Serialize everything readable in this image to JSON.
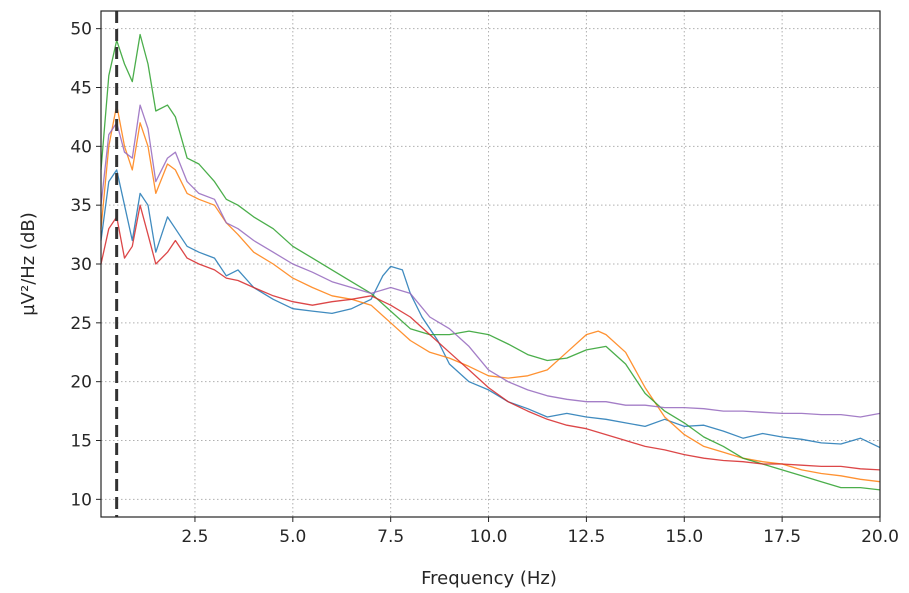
{
  "chart_data": {
    "type": "line",
    "title": "",
    "xlabel": "Frequency (Hz)",
    "ylabel": "µV²/Hz (dB)",
    "xlim": [
      0.1,
      20.0
    ],
    "ylim": [
      8.5,
      51.5
    ],
    "xticks": [
      2.5,
      5.0,
      7.5,
      10.0,
      12.5,
      15.0,
      17.5,
      20.0
    ],
    "xtick_labels": [
      "2.5",
      "5.0",
      "7.5",
      "10.0",
      "12.5",
      "15.0",
      "17.5",
      "20.0"
    ],
    "yticks": [
      10,
      15,
      20,
      25,
      30,
      35,
      40,
      45,
      50
    ],
    "ytick_labels": [
      "10",
      "15",
      "20",
      "25",
      "30",
      "35",
      "40",
      "45",
      "50"
    ],
    "grid": true,
    "legend": "none",
    "vline": {
      "x": 0.5,
      "style": "dashed",
      "color": "#333333"
    },
    "series": [
      {
        "color": "#1f77b4",
        "x": [
          0.1,
          0.3,
          0.5,
          0.7,
          0.9,
          1.1,
          1.3,
          1.5,
          1.8,
          2.0,
          2.3,
          2.6,
          3.0,
          3.3,
          3.6,
          4.0,
          4.5,
          5.0,
          5.5,
          6.0,
          6.5,
          7.0,
          7.3,
          7.5,
          7.8,
          8.0,
          8.3,
          8.7,
          9.0,
          9.5,
          10.0,
          10.5,
          11.0,
          11.5,
          12.0,
          12.5,
          13.0,
          13.5,
          14.0,
          14.5,
          15.0,
          15.5,
          16.0,
          16.5,
          17.0,
          17.5,
          18.0,
          18.5,
          19.0,
          19.5,
          20.0
        ],
        "y": [
          32,
          37,
          38,
          35,
          32,
          36,
          35,
          31,
          34,
          33,
          31.5,
          31,
          30.5,
          29,
          29.5,
          28,
          27,
          26.2,
          26,
          25.8,
          26.2,
          27,
          29,
          29.8,
          29.5,
          27.5,
          25.5,
          23.5,
          21.5,
          20,
          19.3,
          18.3,
          17.7,
          17,
          17.3,
          17,
          16.8,
          16.5,
          16.2,
          16.8,
          16.2,
          16.3,
          15.8,
          15.2,
          15.6,
          15.3,
          15.1,
          14.8,
          14.7,
          15.2,
          14.4
        ]
      },
      {
        "color": "#ff7f0e",
        "x": [
          0.1,
          0.3,
          0.5,
          0.7,
          0.9,
          1.1,
          1.3,
          1.5,
          1.8,
          2.0,
          2.3,
          2.6,
          3.0,
          3.3,
          3.6,
          4.0,
          4.5,
          5.0,
          5.5,
          6.0,
          6.5,
          7.0,
          7.5,
          8.0,
          8.5,
          9.0,
          9.5,
          10.0,
          10.5,
          11.0,
          11.5,
          12.0,
          12.5,
          12.8,
          13.0,
          13.5,
          14.0,
          14.5,
          15.0,
          15.5,
          16.0,
          16.5,
          17.0,
          17.5,
          18.0,
          18.5,
          19.0,
          19.5,
          20.0
        ],
        "y": [
          33,
          40,
          43.5,
          40,
          38,
          42,
          40,
          36,
          38.5,
          38,
          36,
          35.5,
          35,
          33.5,
          32.5,
          31,
          30,
          28.8,
          28,
          27.3,
          27,
          26.5,
          25,
          23.5,
          22.5,
          22,
          21.3,
          20.5,
          20.3,
          20.5,
          21,
          22.5,
          24,
          24.3,
          24,
          22.5,
          19.5,
          17,
          15.5,
          14.5,
          14,
          13.5,
          13.2,
          13,
          12.5,
          12.2,
          12,
          11.7,
          11.5
        ]
      },
      {
        "color": "#2ca02c",
        "x": [
          0.1,
          0.3,
          0.5,
          0.7,
          0.9,
          1.1,
          1.3,
          1.5,
          1.8,
          2.0,
          2.3,
          2.6,
          3.0,
          3.3,
          3.6,
          4.0,
          4.5,
          5.0,
          5.5,
          6.0,
          6.5,
          7.0,
          7.5,
          8.0,
          8.5,
          9.0,
          9.5,
          10.0,
          10.5,
          11.0,
          11.5,
          12.0,
          12.5,
          13.0,
          13.5,
          14.0,
          14.5,
          15.0,
          15.5,
          16.0,
          16.5,
          17.0,
          17.5,
          18.0,
          18.5,
          19.0,
          19.5,
          20.0
        ],
        "y": [
          38,
          46,
          49,
          47,
          45.5,
          49.5,
          47,
          43,
          43.5,
          42.5,
          39,
          38.5,
          37,
          35.5,
          35,
          34,
          33,
          31.5,
          30.5,
          29.5,
          28.5,
          27.5,
          26,
          24.5,
          24,
          24,
          24.3,
          24,
          23.2,
          22.3,
          21.8,
          22,
          22.7,
          23,
          21.5,
          19,
          17.5,
          16.5,
          15.3,
          14.5,
          13.5,
          13,
          12.5,
          12,
          11.5,
          11,
          11,
          10.8
        ]
      },
      {
        "color": "#d62728",
        "x": [
          0.1,
          0.3,
          0.5,
          0.7,
          0.9,
          1.1,
          1.3,
          1.5,
          1.8,
          2.0,
          2.3,
          2.6,
          3.0,
          3.3,
          3.6,
          4.0,
          4.5,
          5.0,
          5.5,
          6.0,
          6.5,
          7.0,
          7.5,
          8.0,
          8.5,
          9.0,
          9.5,
          10.0,
          10.5,
          11.0,
          11.5,
          12.0,
          12.5,
          13.0,
          13.5,
          14.0,
          14.5,
          15.0,
          15.5,
          16.0,
          16.5,
          17.0,
          17.5,
          18.0,
          18.5,
          19.0,
          19.5,
          20.0
        ],
        "y": [
          30,
          33,
          34,
          30.5,
          31.5,
          35,
          32.5,
          30,
          31,
          32,
          30.5,
          30,
          29.5,
          28.8,
          28.6,
          28,
          27.3,
          26.8,
          26.5,
          26.8,
          27,
          27.3,
          26.5,
          25.5,
          24,
          22.5,
          21,
          19.5,
          18.3,
          17.5,
          16.8,
          16.3,
          16,
          15.5,
          15,
          14.5,
          14.2,
          13.8,
          13.5,
          13.3,
          13.2,
          13,
          13,
          12.9,
          12.8,
          12.8,
          12.6,
          12.5
        ]
      },
      {
        "color": "#9467bd",
        "x": [
          0.1,
          0.3,
          0.5,
          0.7,
          0.9,
          1.1,
          1.3,
          1.5,
          1.8,
          2.0,
          2.3,
          2.6,
          3.0,
          3.3,
          3.6,
          4.0,
          4.5,
          5.0,
          5.5,
          6.0,
          6.5,
          7.0,
          7.5,
          8.0,
          8.5,
          9.0,
          9.5,
          10.0,
          10.5,
          11.0,
          11.5,
          12.0,
          12.5,
          13.0,
          13.5,
          14.0,
          14.5,
          15.0,
          15.5,
          16.0,
          16.5,
          17.0,
          17.5,
          18.0,
          18.5,
          19.0,
          19.5,
          20.0
        ],
        "y": [
          35,
          41,
          42,
          39.5,
          39,
          43.5,
          41.5,
          37,
          39,
          39.5,
          37,
          36,
          35.5,
          33.5,
          33,
          32,
          31,
          30,
          29.3,
          28.5,
          28,
          27.5,
          28,
          27.5,
          25.5,
          24.5,
          23,
          21,
          20,
          19.3,
          18.8,
          18.5,
          18.3,
          18.3,
          18,
          18,
          17.8,
          17.8,
          17.7,
          17.5,
          17.5,
          17.4,
          17.3,
          17.3,
          17.2,
          17.2,
          17,
          17.3
        ]
      }
    ]
  }
}
